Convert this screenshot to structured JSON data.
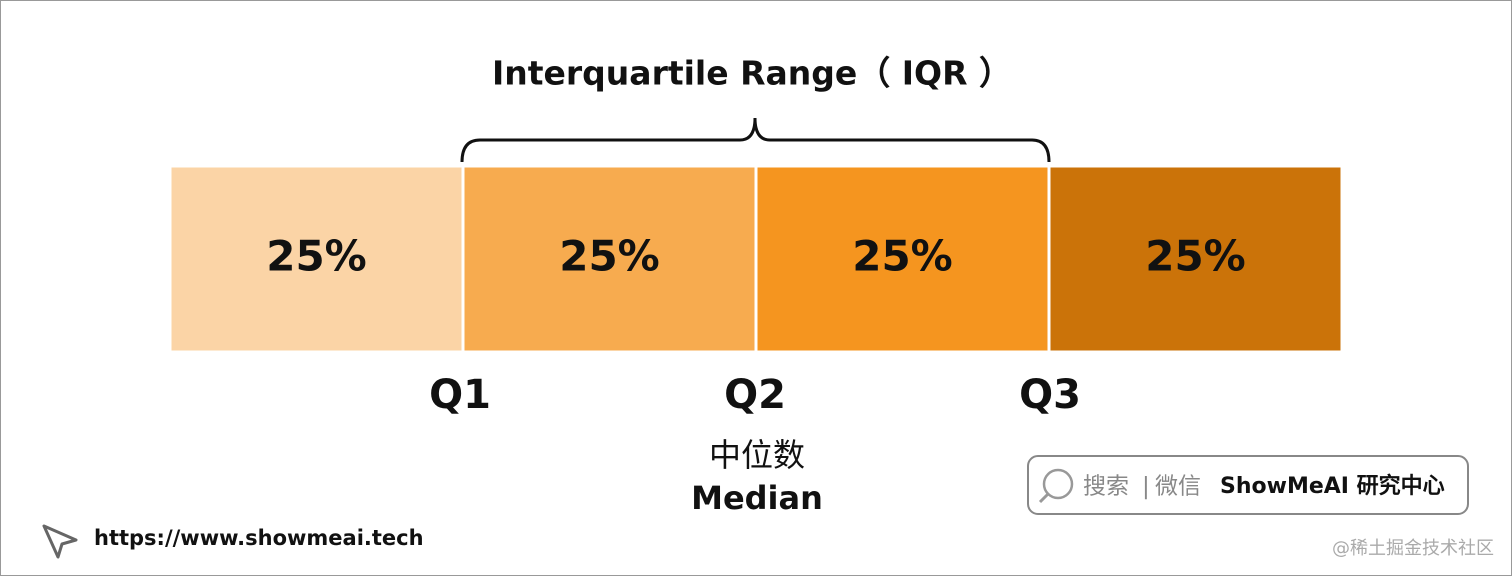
{
  "title": "Interquartile Range（ IQR ）",
  "segments": [
    {
      "label": "25%",
      "color": "#fbd4a6"
    },
    {
      "label": "25%",
      "color": "#f7ab4f"
    },
    {
      "label": "25%",
      "color": "#f5951f"
    },
    {
      "label": "25%",
      "color": "#cb7309"
    }
  ],
  "quartiles": [
    "Q1",
    "Q2",
    "Q3"
  ],
  "median": {
    "chinese": "中位数",
    "english": "Median"
  },
  "footer": {
    "url": "https://www.showmeai.tech",
    "search": {
      "prefix": "搜索",
      "divider": "|",
      "platform": "微信",
      "brand": "ShowMeAI 研究中心"
    },
    "watermark": "@稀土掘金技术社区"
  }
}
